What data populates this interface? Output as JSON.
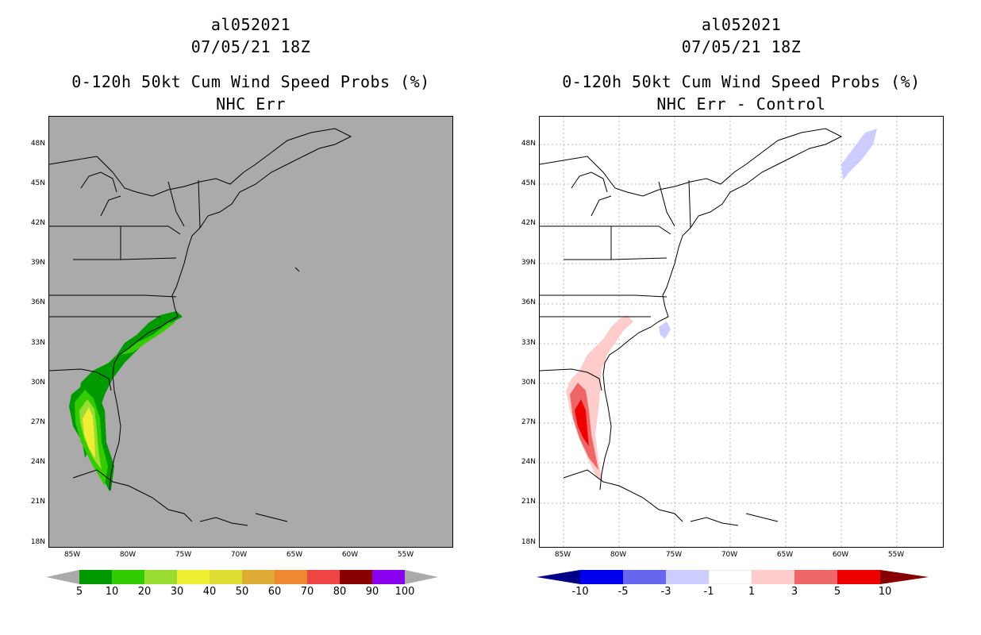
{
  "left": {
    "title_line1": "al052021",
    "title_line2": "07/05/21 18Z",
    "title_line3": "0-120h 50kt Cum Wind Speed Probs (%)",
    "title_line4": "NHC Err",
    "background_color": "#aaaaaa",
    "colorbar": {
      "colors": [
        "#009900",
        "#33cc00",
        "#99dd33",
        "#eeee33",
        "#dddd33",
        "#ddaa33",
        "#ee8833",
        "#ee4444",
        "#880000",
        "#8800ee"
      ],
      "end_color": "#aaaaaa",
      "labels": [
        "5",
        "10",
        "20",
        "30",
        "40",
        "50",
        "60",
        "70",
        "80",
        "90",
        "100"
      ]
    }
  },
  "right": {
    "title_line1": "al052021",
    "title_line2": "07/05/21 18Z",
    "title_line3": "0-120h 50kt Cum Wind Speed Probs (%)",
    "title_line4": "NHC Err - Control",
    "background_color": "#ffffff",
    "colorbar": {
      "colors": [
        "#0000cc",
        "#0000ee",
        "#6666ee",
        "#ccccff",
        "#ffffff",
        "#ffcccc",
        "#ee6666",
        "#ee0000"
      ],
      "end_left_color": "#000088",
      "end_right_color": "#880000",
      "labels": [
        "-10",
        "-5",
        "-3",
        "-1",
        "1",
        "3",
        "5",
        "10"
      ]
    }
  },
  "axes": {
    "lat_labels": [
      "48N",
      "45N",
      "42N",
      "39N",
      "36N",
      "33N",
      "30N",
      "27N",
      "24N",
      "21N",
      "18N"
    ],
    "lon_labels": [
      "85W",
      "80W",
      "75W",
      "70W",
      "65W",
      "60W",
      "55W"
    ]
  },
  "icons": {
    "map": "coastline-map",
    "colorbar": "legend-colorbar"
  }
}
